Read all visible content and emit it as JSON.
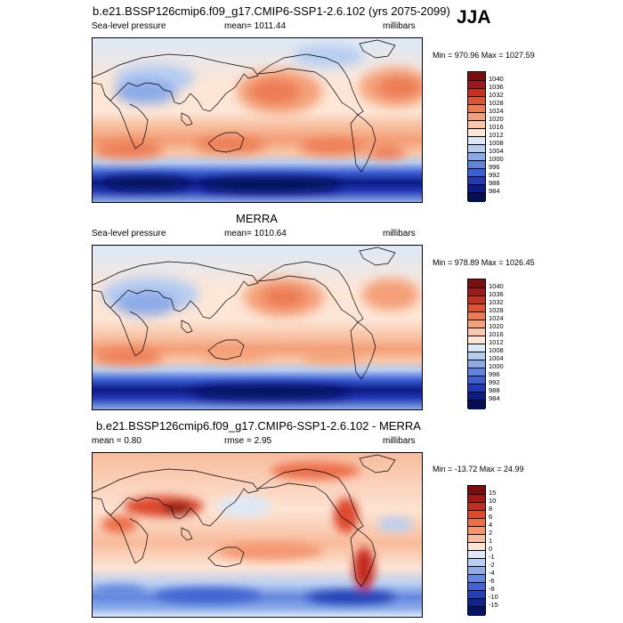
{
  "season": "JJA",
  "panels": [
    {
      "title": "b.e21.BSSP126cmip6.f09_g17.CMIP6-SSP1-2.6.102 (yrs 2075-2099)",
      "left": "Sea-level pressure",
      "center": "mean= 1011.44",
      "right": "millibars",
      "minmax": "Min = 970.96 Max = 1027.59",
      "colorbar": {
        "labels": [
          "1040",
          "1036",
          "1032",
          "1028",
          "1024",
          "1020",
          "1016",
          "1012",
          "1008",
          "1004",
          "1000",
          "996",
          "992",
          "988",
          "984"
        ],
        "colors": [
          "#7a0d0d",
          "#9e1a1a",
          "#c4321f",
          "#dc5434",
          "#ec7a52",
          "#f4a078",
          "#f8c6a8",
          "#fde6d6",
          "#dce9f8",
          "#b6cdf2",
          "#8baae8",
          "#5e84df",
          "#3c5fd4",
          "#2238b4",
          "#0b1d84",
          "#040f55"
        ]
      }
    },
    {
      "title": "MERRA",
      "left": "Sea-level pressure",
      "center": "mean= 1010.64",
      "right": "millibars",
      "minmax": "Min = 978.89 Max = 1026.45",
      "colorbar": {
        "labels": [
          "1040",
          "1036",
          "1032",
          "1028",
          "1024",
          "1020",
          "1016",
          "1012",
          "1008",
          "1004",
          "1000",
          "996",
          "992",
          "988",
          "984"
        ],
        "colors": [
          "#7a0d0d",
          "#9e1a1a",
          "#c4321f",
          "#dc5434",
          "#ec7a52",
          "#f4a078",
          "#f8c6a8",
          "#fde6d6",
          "#dce9f8",
          "#b6cdf2",
          "#8baae8",
          "#5e84df",
          "#3c5fd4",
          "#2238b4",
          "#0b1d84",
          "#040f55"
        ]
      }
    },
    {
      "title": "b.e21.BSSP126cmip6.f09_g17.CMIP6-SSP1-2.6.102 - MERRA",
      "left": "mean =   0.80",
      "center": "rmse =   2.95",
      "right": "millibars",
      "minmax": "Min = -13.72 Max =  24.99",
      "colorbar": {
        "labels": [
          "15",
          "10",
          "8",
          "6",
          "4",
          "2",
          "1",
          "0",
          "-1",
          "-2",
          "-4",
          "-6",
          "-8",
          "-10",
          "-15"
        ],
        "colors": [
          "#7a0d0d",
          "#a01818",
          "#c62c1e",
          "#dd4a2e",
          "#ec6e48",
          "#f49670",
          "#f8bc9c",
          "#fde4d4",
          "#dde9f8",
          "#b8cef2",
          "#8eaeea",
          "#6488df",
          "#4064d2",
          "#2440b4",
          "#0e2490",
          "#061460"
        ]
      }
    }
  ]
}
